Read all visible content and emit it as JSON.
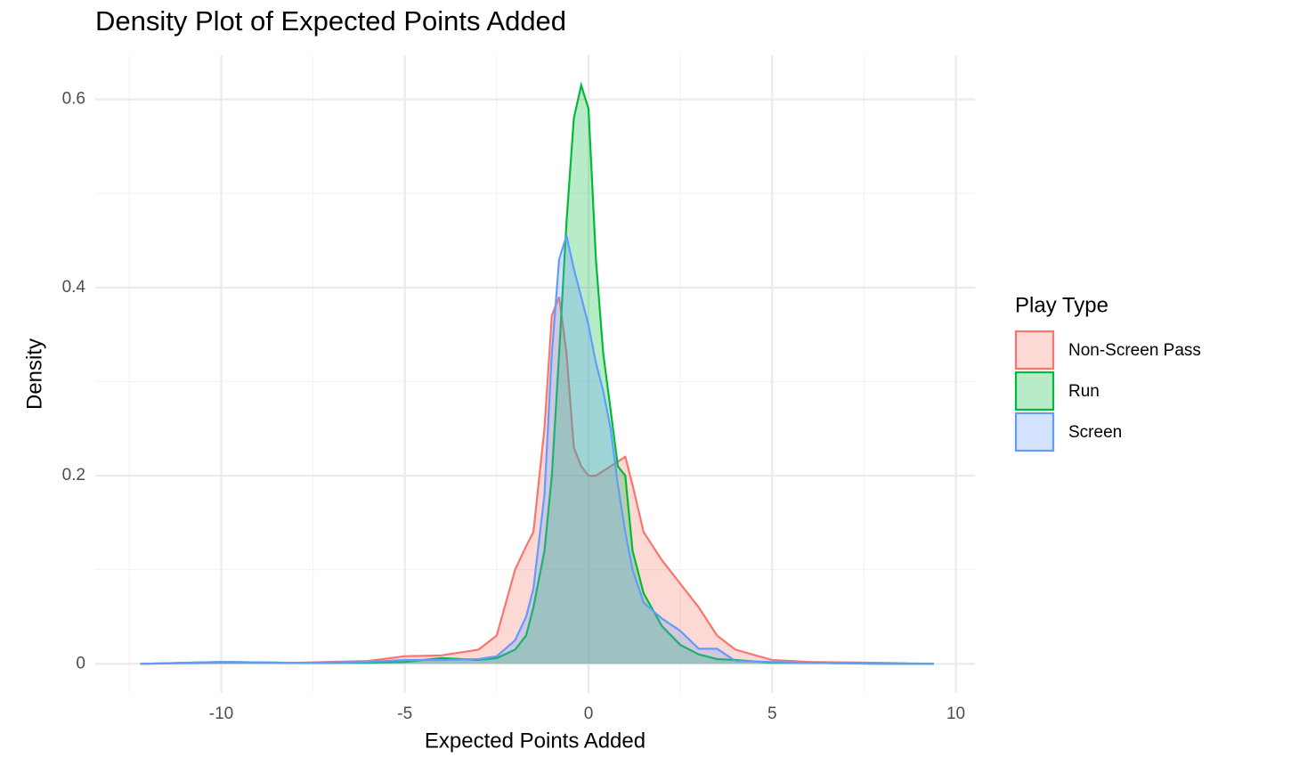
{
  "chart_data": {
    "type": "density",
    "title": "Density Plot of Expected Points Added",
    "x_label": "Expected Points Added",
    "y_label": "Density",
    "legend_title": "Play Type",
    "legend": "right",
    "grid": true,
    "xlim": [
      -13.43,
      10.52
    ],
    "ylim": [
      -0.031,
      0.647
    ],
    "xticks": [
      -10,
      -5,
      0,
      5,
      10
    ],
    "yticks": [
      0.0,
      0.2,
      0.4,
      0.6
    ],
    "xminor": [
      -12.5,
      -7.5,
      -2.5,
      2.5,
      7.5
    ],
    "yminor": [
      0.1,
      0.3,
      0.5
    ],
    "x": [
      -12.2,
      -10,
      -8,
      -6,
      -5,
      -4,
      -3,
      -2.5,
      -2,
      -1.7,
      -1.5,
      -1.2,
      -1,
      -0.8,
      -0.6,
      -0.4,
      -0.2,
      0,
      0.2,
      0.4,
      0.6,
      0.8,
      1,
      1.2,
      1.5,
      2,
      2.5,
      3,
      3.5,
      4,
      5,
      6,
      8,
      9.4
    ],
    "series": [
      {
        "name": "Non-Screen Pass",
        "color": "#F8766D",
        "values": [
          0,
          0.001,
          0.001,
          0.003,
          0.008,
          0.009,
          0.015,
          0.03,
          0.1,
          0.125,
          0.14,
          0.25,
          0.37,
          0.39,
          0.33,
          0.23,
          0.21,
          0.2,
          0.2,
          0.205,
          0.21,
          0.215,
          0.22,
          0.19,
          0.14,
          0.11,
          0.085,
          0.06,
          0.03,
          0.015,
          0.004,
          0.002,
          0.001,
          0
        ]
      },
      {
        "name": "Run",
        "color": "#00BA38",
        "values": [
          0,
          0.002,
          0.001,
          0.001,
          0.002,
          0.006,
          0.004,
          0.006,
          0.015,
          0.03,
          0.06,
          0.12,
          0.2,
          0.33,
          0.47,
          0.58,
          0.615,
          0.59,
          0.43,
          0.33,
          0.27,
          0.21,
          0.2,
          0.12,
          0.075,
          0.04,
          0.02,
          0.01,
          0.005,
          0.004,
          0.001,
          0.001,
          0,
          0
        ]
      },
      {
        "name": "Screen",
        "color": "#619CFF",
        "values": [
          0,
          0.002,
          0.001,
          0.002,
          0.004,
          0.004,
          0.005,
          0.008,
          0.025,
          0.05,
          0.08,
          0.18,
          0.33,
          0.43,
          0.455,
          0.42,
          0.39,
          0.36,
          0.32,
          0.29,
          0.25,
          0.19,
          0.14,
          0.1,
          0.065,
          0.048,
          0.035,
          0.016,
          0.016,
          0.003,
          0.002,
          0.001,
          0,
          0
        ]
      }
    ]
  }
}
